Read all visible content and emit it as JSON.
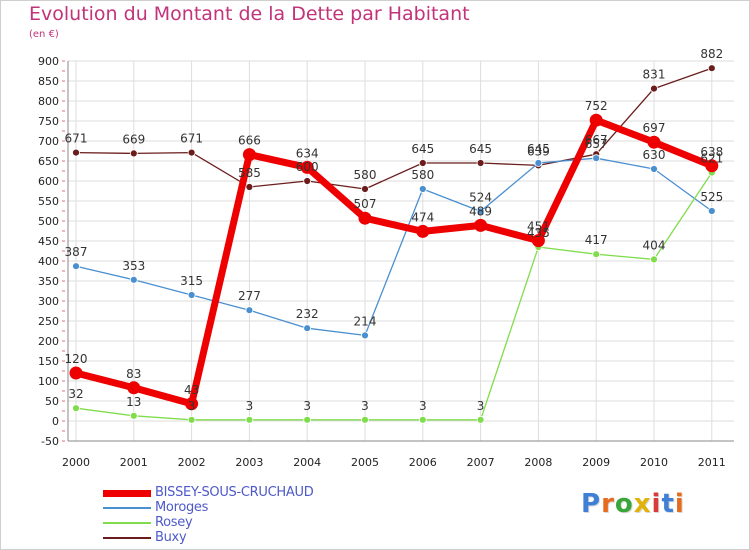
{
  "header": {
    "title": "Evolution du Montant de la Dette par Habitant",
    "subtitle": "(en €)"
  },
  "colors": {
    "title": "#c2337a",
    "axis_text": "#222222",
    "grid": "#dddddd",
    "legend_text": "#4d59c9"
  },
  "chart_data": {
    "type": "line",
    "title": "Evolution du Montant de la Dette par Habitant",
    "subtitle": "(en €)",
    "xlabel": "",
    "ylabel": "",
    "x": [
      "2000",
      "2001",
      "2002",
      "2003",
      "2004",
      "2005",
      "2006",
      "2007",
      "2008",
      "2009",
      "2010",
      "2011"
    ],
    "ylim": [
      -50,
      900
    ],
    "yticks": [
      -50,
      0,
      50,
      100,
      150,
      200,
      250,
      300,
      350,
      400,
      450,
      500,
      550,
      600,
      650,
      700,
      750,
      800,
      850,
      900
    ],
    "grid": true,
    "legend": "bottom-left",
    "series": [
      {
        "name": "BISSEY-SOUS-CRUCHAUD",
        "color": "#ee0000",
        "values": [
          120,
          83,
          43,
          666,
          634,
          507,
          474,
          489,
          451,
          752,
          697,
          638
        ]
      },
      {
        "name": "Moroges",
        "color": "#4a8fd0",
        "values": [
          387,
          353,
          315,
          277,
          232,
          214,
          580,
          524,
          645,
          657,
          630,
          525
        ]
      },
      {
        "name": "Rosey",
        "color": "#7fdd4b",
        "values": [
          32,
          13,
          3,
          3,
          3,
          3,
          3,
          3,
          435,
          417,
          404,
          621
        ]
      },
      {
        "name": "Buxy",
        "color": "#6b1d1d",
        "values": [
          671,
          669,
          671,
          585,
          600,
          580,
          645,
          645,
          639,
          667,
          831,
          882
        ]
      }
    ],
    "data_labels": [
      [
        "120",
        "83",
        "43",
        "666",
        "634",
        "507",
        "474",
        "489",
        "451",
        "752",
        "697",
        "638"
      ],
      [
        "387",
        "353",
        "315",
        "277",
        "232",
        "214",
        "580",
        "524",
        "645",
        "657",
        "630",
        "525"
      ],
      [
        "32",
        "13",
        "3",
        "3",
        "3",
        "3",
        "3",
        "3",
        "435",
        "417",
        "404",
        "621"
      ],
      [
        "671",
        "669",
        "671",
        "585",
        "600",
        "580",
        "645",
        "645",
        "639",
        "667",
        "831",
        "882"
      ]
    ]
  },
  "legend": {
    "items": [
      {
        "label": "BISSEY-SOUS-CRUCHAUD",
        "color": "#ee0000",
        "width": 7
      },
      {
        "label": "Moroges",
        "color": "#4a8fd0",
        "width": 1.5
      },
      {
        "label": "Rosey",
        "color": "#7fdd4b",
        "width": 1.5
      },
      {
        "label": "Buxy",
        "color": "#6b1d1d",
        "width": 1.5
      }
    ]
  },
  "logo": {
    "text": "Proxiti",
    "letter_colors": [
      "#3f7fd6",
      "#e56b1f",
      "#3aa63a",
      "#e0b20b",
      "#d93a3a",
      "#3f7fd6",
      "#e56b1f"
    ]
  }
}
